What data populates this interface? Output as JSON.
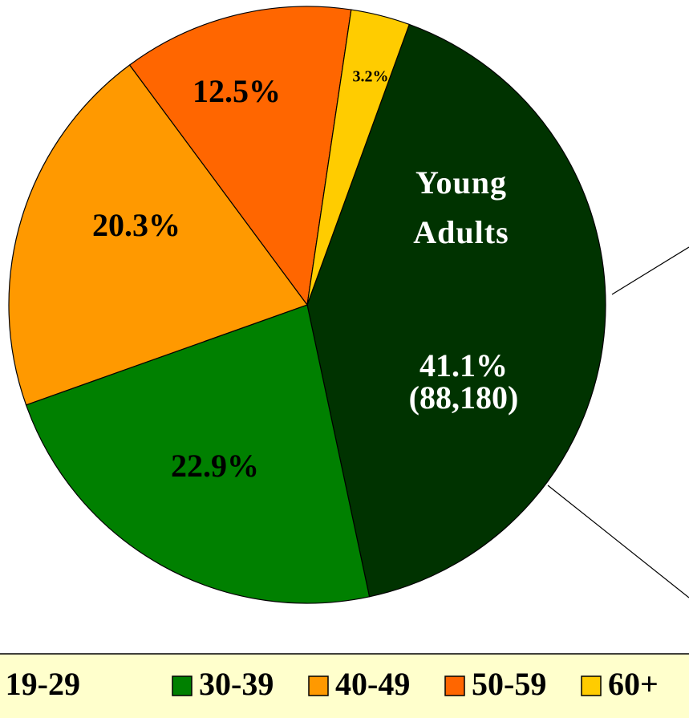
{
  "chart_data": {
    "type": "pie",
    "categories": [
      "19-29",
      "30-39",
      "40-49",
      "50-59",
      "60+"
    ],
    "values": [
      41.1,
      22.9,
      20.3,
      12.5,
      3.2
    ],
    "value_labels": [
      "41.1%",
      "22.9%",
      "20.3%",
      "12.5%",
      "3.2%"
    ],
    "colors": [
      "#003300",
      "#008000",
      "#ff9900",
      "#ff6600",
      "#ffcc00"
    ],
    "annotation_lines": [
      "Young",
      "Adults"
    ],
    "count_label": "(88,180)",
    "legend": "bottom"
  }
}
